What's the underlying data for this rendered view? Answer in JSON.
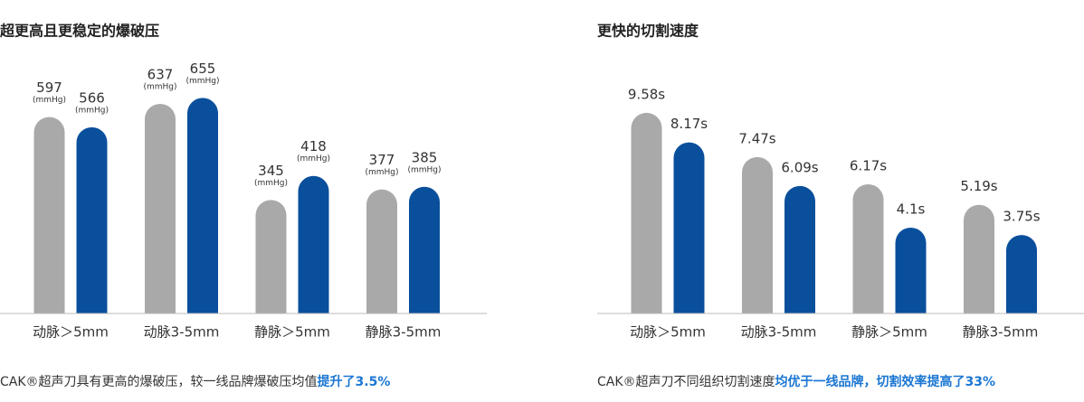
{
  "chart_data": [
    {
      "type": "bar",
      "title": "超更高且更稳定的爆破压",
      "categories": [
        "动脉＞5mm",
        "动脉3-5mm",
        "静脉＞5mm",
        "静脉3-5mm"
      ],
      "series": [
        {
          "color": "#a9a9a9",
          "values": [
            597,
            637,
            345,
            377
          ]
        },
        {
          "color": "#0a4f9c",
          "values": [
            566,
            655,
            418,
            385
          ]
        }
      ],
      "value_unit": "(mmHg)",
      "ylim": [
        0,
        700
      ],
      "caption": "CAK®超声刀具有更高的爆破压，较一线品牌爆破压均值",
      "caption_highlight": "提升了3.5%"
    },
    {
      "type": "bar",
      "title": "更快的切割速度",
      "categories": [
        "动脉＞5mm",
        "动脉3-5mm",
        "静脉＞5mm",
        "静脉3-5mm"
      ],
      "series": [
        {
          "color": "#a9a9a9",
          "values": [
            9.58,
            7.47,
            6.17,
            5.19
          ],
          "value_labels": [
            "9.58s",
            "7.47s",
            "6.17s",
            "5.19s"
          ]
        },
        {
          "color": "#0a4f9c",
          "values": [
            8.17,
            6.09,
            4.1,
            3.75
          ],
          "value_labels": [
            "8.17s",
            "6.09s",
            "4.1s",
            "3.75s"
          ]
        }
      ],
      "ylim": [
        0,
        11
      ],
      "caption": "CAK®超声刀不同组织切割速度",
      "caption_highlight": "均优于一线品牌，切割效率提高了33%"
    }
  ]
}
